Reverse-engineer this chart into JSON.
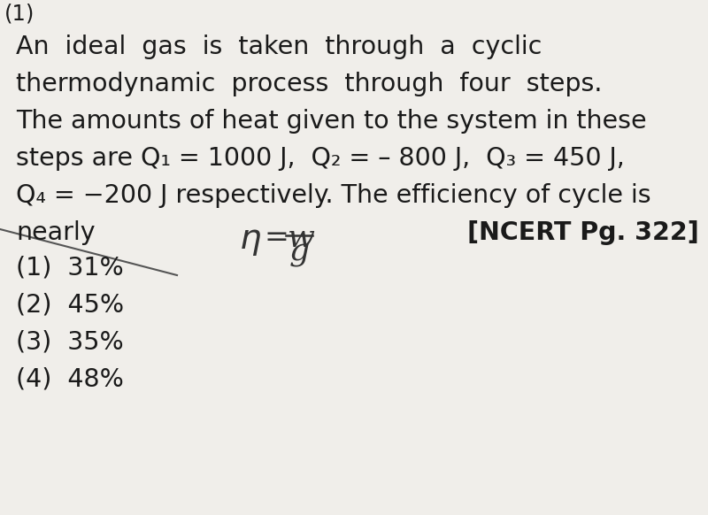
{
  "bg_color": "#f0eeea",
  "text_color": "#1a1a1a",
  "line1": "An  ideal  gas  is  taken  through  a  cyclic",
  "line2": "thermodynamic  process  through  four  steps.",
  "line3": "The amounts of heat given to the system in these",
  "line4": "steps are Q₁ = 1000 J,  Q₂ = – 800 J,  Q₃ = 450 J,",
  "line5": "Q₄ = −200 J respectively. The efficiency of cycle is",
  "ncert_ref": "[NCERT Pg. 322]",
  "line6": "nearly",
  "options": [
    "(1)  31%",
    "(2)  45%",
    "(3)  35%",
    "(4)  48%"
  ],
  "font_size_main": 20.5,
  "font_size_options": 20.5,
  "font_size_ncert": 20.5,
  "font_size_handwritten": 28
}
